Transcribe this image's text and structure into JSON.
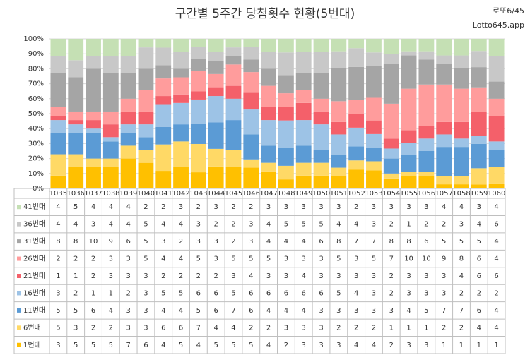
{
  "chart_data": {
    "type": "bar",
    "stacked": "percent",
    "title": "구간별 5주간 당첨횟수 현황(5번대)",
    "brand": [
      "로또6/45",
      "Lotto645.app"
    ],
    "categories": [
      "1035",
      "1036",
      "1037",
      "1038",
      "1039",
      "1040",
      "1041",
      "1042",
      "1043",
      "1044",
      "1045",
      "1046",
      "1047",
      "1048",
      "1049",
      "1050",
      "1051",
      "1052",
      "1053",
      "1054",
      "1055",
      "1056",
      "1057",
      "1058",
      "1059",
      "1060"
    ],
    "series": [
      {
        "name": "1번대",
        "color": "#ffc000",
        "values": [
          3,
          5,
          5,
          5,
          7,
          6,
          4,
          5,
          4,
          5,
          5,
          5,
          4,
          2,
          3,
          3,
          3,
          4,
          4,
          2,
          3,
          3,
          1,
          1,
          1,
          1
        ]
      },
      {
        "name": "6번대",
        "color": "#ffd966",
        "values": [
          5,
          3,
          2,
          2,
          3,
          3,
          6,
          6,
          7,
          4,
          4,
          2,
          2,
          3,
          3,
          3,
          2,
          2,
          2,
          1,
          1,
          1,
          2,
          2,
          4,
          4
        ]
      },
      {
        "name": "11번대",
        "color": "#5b9bd5",
        "values": [
          5,
          5,
          6,
          4,
          3,
          3,
          4,
          4,
          5,
          6,
          7,
          6,
          4,
          4,
          4,
          3,
          3,
          3,
          3,
          3,
          4,
          5,
          7,
          7,
          6,
          4
        ]
      },
      {
        "name": "16번대",
        "color": "#9dc3e6",
        "values": [
          3,
          2,
          1,
          1,
          2,
          3,
          5,
          5,
          6,
          6,
          5,
          6,
          6,
          6,
          6,
          6,
          5,
          4,
          3,
          2,
          3,
          3,
          3,
          2,
          2,
          2
        ]
      },
      {
        "name": "21번대",
        "color": "#f4606a",
        "values": [
          1,
          1,
          2,
          3,
          3,
          3,
          2,
          2,
          2,
          2,
          3,
          4,
          3,
          3,
          4,
          3,
          3,
          3,
          3,
          2,
          3,
          3,
          3,
          4,
          6,
          6
        ]
      },
      {
        "name": "26번대",
        "color": "#ff9c9c",
        "values": [
          2,
          2,
          2,
          3,
          3,
          5,
          4,
          4,
          5,
          3,
          5,
          5,
          5,
          3,
          3,
          3,
          5,
          3,
          5,
          7,
          10,
          10,
          9,
          8,
          6,
          4
        ]
      },
      {
        "name": "31번대",
        "color": "#a5a5a5",
        "values": [
          8,
          8,
          10,
          9,
          6,
          5,
          3,
          2,
          3,
          3,
          2,
          3,
          4,
          4,
          4,
          6,
          8,
          7,
          7,
          8,
          8,
          6,
          5,
          5,
          5,
          4
        ]
      },
      {
        "name": "36번대",
        "color": "#c8c8c8",
        "values": [
          4,
          4,
          3,
          4,
          4,
          5,
          4,
          4,
          3,
          2,
          2,
          3,
          4,
          5,
          5,
          5,
          4,
          4,
          3,
          2,
          1,
          2,
          2,
          3,
          4,
          6
        ]
      },
      {
        "name": "41번대",
        "color": "#c5e0b4",
        "values": [
          4,
          5,
          4,
          4,
          4,
          2,
          2,
          3,
          2,
          3,
          2,
          2,
          3,
          3,
          3,
          3,
          3,
          2,
          3,
          3,
          3,
          3,
          4,
          4,
          3,
          4
        ]
      }
    ],
    "ylim": [
      0,
      100
    ],
    "yticks": [
      {
        "value": 0,
        "label": "0%"
      },
      {
        "value": 10,
        "label": "10%"
      },
      {
        "value": 20,
        "label": "20%"
      },
      {
        "value": 30,
        "label": "30%"
      },
      {
        "value": 40,
        "label": "40%"
      },
      {
        "value": 50,
        "label": "50%"
      },
      {
        "value": 60,
        "label": "60%"
      },
      {
        "value": 70,
        "label": "70%"
      },
      {
        "value": 80,
        "label": "80%"
      },
      {
        "value": 90,
        "label": "90%"
      },
      {
        "value": 100,
        "label": "100%"
      }
    ],
    "grid": true
  }
}
